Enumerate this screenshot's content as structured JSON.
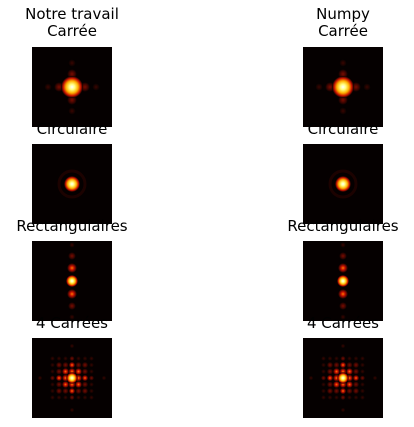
{
  "column_titles": {
    "left": [
      "Notre travail",
      "Carrée"
    ],
    "right": [
      "Numpy",
      "Carrée"
    ]
  },
  "chart_data": [
    {
      "type": "heatmap",
      "title": "Carrée",
      "column": "Notre travail",
      "pattern": "square",
      "colormap": "hot"
    },
    {
      "type": "heatmap",
      "title": "Carrée",
      "column": "Numpy",
      "pattern": "square",
      "colormap": "hot"
    },
    {
      "type": "heatmap",
      "title": "Circulaire",
      "column": "Notre travail",
      "pattern": "circular",
      "colormap": "hot"
    },
    {
      "type": "heatmap",
      "title": "Circulaire",
      "column": "Numpy",
      "pattern": "circular",
      "colormap": "hot"
    },
    {
      "type": "heatmap",
      "title": "Rectangulaires",
      "column": "Notre travail",
      "pattern": "rectangular",
      "colormap": "hot"
    },
    {
      "type": "heatmap",
      "title": "Rectangulaires",
      "column": "Numpy",
      "pattern": "rectangular",
      "colormap": "hot"
    },
    {
      "type": "heatmap",
      "title": "4 Carrées",
      "column": "Notre travail",
      "pattern": "four-squares",
      "colormap": "hot"
    },
    {
      "type": "heatmap",
      "title": "4 Carrées",
      "column": "Numpy",
      "pattern": "four-squares",
      "colormap": "hot"
    }
  ],
  "panel_titles": [
    "Carrée",
    "Circulaire",
    "Rectangulaires",
    "4 Carrées"
  ]
}
